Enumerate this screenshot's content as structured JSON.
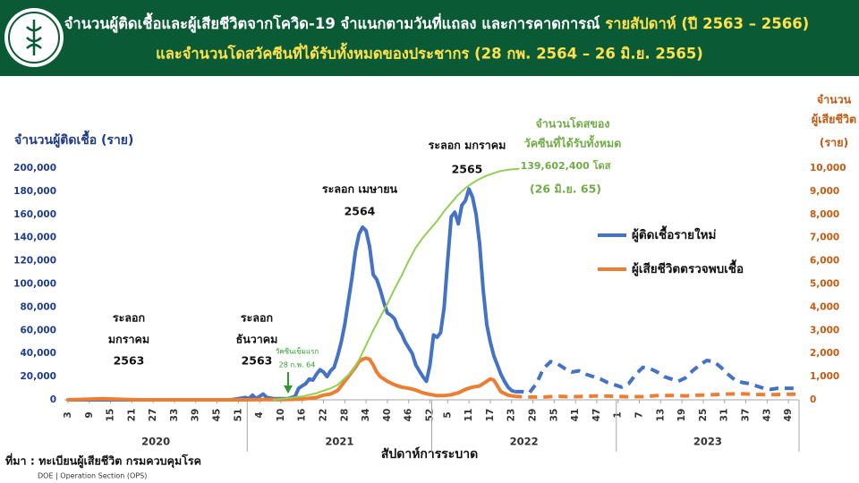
{
  "chart_data": {
    "type": "line",
    "title": [
      "จำนวนผู้ติดเชื้อและผู้เสียชีวิตจากโควิด-19 จำแนกตามวันที่แถลง และการคาดการณ์",
      "รายสัปดาห์ (ปี 2563 – 2566)"
    ],
    "subtitle": "และจำนวนโดสวัคซีนที่ได้รับทั้งหมดของประชากร (28 กพ. 2564 – 26 มิ.ย. 2565)",
    "ylabel": "จำนวนผู้ติดเชื้อ (ราย)",
    "y2label": [
      "จำนวน",
      "ผู้เสียชีวิต",
      "(ราย)"
    ],
    "xlabel": "สัปดาห์การระบาด",
    "source": "ที่มา : ทะเบียนผู้เสียชีวิต กรมควบคุมโรค",
    "credit": "DOE | Operation Section (OPS)",
    "legend": "right",
    "xlim": [
      -1,
      206
    ],
    "xticks": [
      {
        "value": 0,
        "label": "3"
      },
      {
        "value": 6,
        "label": "9"
      },
      {
        "value": 12,
        "label": "15"
      },
      {
        "value": 18,
        "label": "21"
      },
      {
        "value": 24,
        "label": "27"
      },
      {
        "value": 30,
        "label": "33"
      },
      {
        "value": 36,
        "label": "39"
      },
      {
        "value": 42,
        "label": "45"
      },
      {
        "value": 48,
        "label": "51"
      },
      {
        "value": 54,
        "label": "4"
      },
      {
        "value": 60,
        "label": "10"
      },
      {
        "value": 66,
        "label": "16"
      },
      {
        "value": 72,
        "label": "22"
      },
      {
        "value": 78,
        "label": "28"
      },
      {
        "value": 84,
        "label": "34"
      },
      {
        "value": 90,
        "label": "40"
      },
      {
        "value": 96,
        "label": "46"
      },
      {
        "value": 102,
        "label": "52"
      },
      {
        "value": 107,
        "label": "5"
      },
      {
        "value": 113,
        "label": "11"
      },
      {
        "value": 119,
        "label": "17"
      },
      {
        "value": 125,
        "label": "23"
      },
      {
        "value": 131,
        "label": "29"
      },
      {
        "value": 137,
        "label": "35"
      },
      {
        "value": 143,
        "label": "41"
      },
      {
        "value": 149,
        "label": "47"
      },
      {
        "value": 155,
        "label": "1"
      },
      {
        "value": 161,
        "label": "7"
      },
      {
        "value": 167,
        "label": "13"
      },
      {
        "value": 173,
        "label": "19"
      },
      {
        "value": 179,
        "label": "25"
      },
      {
        "value": 185,
        "label": "31"
      },
      {
        "value": 191,
        "label": "37"
      },
      {
        "value": 197,
        "label": "43"
      },
      {
        "value": 203,
        "label": "49"
      }
    ],
    "year_groups": [
      {
        "label": "2020",
        "from": -1,
        "to": 50.5
      },
      {
        "label": "2021",
        "from": 50.5,
        "to": 102.5
      },
      {
        "label": "2022",
        "from": 102.5,
        "to": 154.5
      },
      {
        "label": "2023",
        "from": 154.5,
        "to": 206
      }
    ],
    "ylim": [
      0,
      200000
    ],
    "yticks": [
      0,
      {
        "value": 20000,
        "label": "20,000"
      },
      {
        "value": 40000,
        "label": "40,000"
      },
      {
        "value": 60000,
        "label": "60,000"
      },
      {
        "value": 80000,
        "label": "80,000"
      },
      {
        "value": 100000,
        "label": "100,000"
      },
      {
        "value": 120000,
        "label": "120,000"
      },
      {
        "value": 140000,
        "label": "140,000"
      },
      {
        "value": 160000,
        "label": "160,000"
      },
      {
        "value": 180000,
        "label": "180,000"
      },
      {
        "value": 200000,
        "label": "200,000"
      }
    ],
    "y2lim": [
      0,
      10000
    ],
    "y2ticks": [
      0,
      {
        "value": 1000,
        "label": "1,000"
      },
      {
        "value": 2000,
        "label": "2,000"
      },
      {
        "value": 3000,
        "label": "3,000"
      },
      {
        "value": 4000,
        "label": "4,000"
      },
      {
        "value": 5000,
        "label": "5,000"
      },
      {
        "value": 6000,
        "label": "6,000"
      },
      {
        "value": 7000,
        "label": "7,000"
      },
      {
        "value": 8000,
        "label": "8,000"
      },
      {
        "value": 9000,
        "label": "9,000"
      },
      {
        "value": 10000,
        "label": "10,000"
      }
    ],
    "y3lim": [
      0,
      140000000
    ],
    "series": [
      {
        "name": "ผู้ติดเชื้อรายใหม่",
        "color": "#4472c4",
        "axis": "y",
        "dashed_from": 126,
        "x": [
          0,
          40,
          46,
          48,
          50,
          51,
          52,
          53,
          55,
          56,
          58,
          62,
          64,
          65,
          66,
          67,
          68,
          69,
          70,
          71,
          72,
          73,
          74,
          75,
          76,
          77,
          78,
          79,
          80,
          81,
          82,
          83,
          84,
          85,
          86,
          87,
          88,
          89,
          90,
          91,
          92,
          93,
          94,
          95,
          96,
          97,
          98,
          99,
          100,
          101,
          102,
          103,
          104,
          105,
          106,
          107,
          108,
          109,
          110,
          111,
          112,
          113,
          114,
          115,
          116,
          117,
          118,
          119,
          120,
          121,
          122,
          123,
          124,
          125,
          126,
          128,
          130,
          132,
          134,
          136,
          138,
          140,
          142,
          144,
          146,
          148,
          150,
          152,
          154,
          156,
          158,
          160,
          162,
          164,
          166,
          168,
          170,
          172,
          174,
          176,
          178,
          180,
          182,
          184,
          186,
          188,
          190,
          192,
          194,
          196,
          198,
          200,
          202,
          204,
          206
        ],
        "values": [
          0,
          0,
          0,
          1000,
          2000,
          1000,
          4000,
          1000,
          5000,
          2000,
          1000,
          1000,
          3000,
          10000,
          12000,
          14000,
          18000,
          17000,
          22000,
          26000,
          24000,
          20000,
          25000,
          28000,
          38000,
          50000,
          65000,
          85000,
          105000,
          128000,
          143000,
          149000,
          146000,
          132000,
          108000,
          104000,
          95000,
          84000,
          75000,
          73000,
          70000,
          62000,
          57000,
          50000,
          45000,
          40000,
          30000,
          25000,
          20000,
          16000,
          30000,
          56000,
          54000,
          58000,
          80000,
          120000,
          158000,
          162000,
          152000,
          168000,
          172000,
          182000,
          175000,
          160000,
          135000,
          95000,
          65000,
          50000,
          38000,
          30000,
          22000,
          16000,
          11000,
          8000,
          7000,
          7000,
          6000,
          14000,
          27000,
          33000,
          31000,
          27000,
          24000,
          25000,
          22000,
          20000,
          18000,
          15000,
          13000,
          11000,
          14000,
          22000,
          28000,
          27000,
          24000,
          20000,
          18000,
          16000,
          19000,
          25000,
          30000,
          34000,
          33000,
          28000,
          22000,
          17000,
          15000,
          14000,
          12000,
          10000,
          9000,
          10000,
          10000,
          10000,
          9000
        ]
      },
      {
        "name": "ผู้เสียชีวิตตรวจพบเชื้อ",
        "color": "#ed7d31",
        "axis": "y2",
        "dashed_from": 126,
        "x": [
          0,
          10,
          13,
          20,
          50,
          55,
          60,
          66,
          70,
          72,
          74,
          76,
          78,
          79,
          80,
          81,
          82,
          83,
          84,
          85,
          86,
          87,
          88,
          90,
          92,
          94,
          96,
          98,
          100,
          102,
          104,
          106,
          108,
          110,
          112,
          114,
          116,
          118,
          119,
          120,
          121,
          122,
          124,
          126,
          130,
          134,
          138,
          142,
          146,
          150,
          154,
          158,
          162,
          166,
          170,
          174,
          178,
          182,
          186,
          190,
          194,
          198,
          202,
          206
        ],
        "values": [
          0,
          50,
          30,
          0,
          0,
          10,
          10,
          30,
          100,
          200,
          250,
          400,
          800,
          1000,
          1200,
          1400,
          1650,
          1750,
          1800,
          1750,
          1500,
          1200,
          1000,
          800,
          650,
          550,
          500,
          420,
          300,
          230,
          180,
          180,
          220,
          300,
          450,
          550,
          600,
          800,
          900,
          850,
          600,
          350,
          200,
          150,
          120,
          120,
          150,
          130,
          150,
          170,
          150,
          130,
          140,
          180,
          190,
          170,
          200,
          220,
          250,
          260,
          230,
          220,
          240,
          250
        ]
      },
      {
        "name": "จำนวนโดสของวัคซีนที่ได้รับทั้งหมด",
        "color": "#92d050",
        "axis": "y3",
        "x": [
          58,
          62,
          66,
          70,
          74,
          76,
          78,
          80,
          82,
          84,
          86,
          88,
          90,
          92,
          94,
          96,
          98,
          100,
          102,
          104,
          106,
          108,
          110,
          112,
          114,
          116,
          118,
          120,
          122,
          124,
          127
        ],
        "values": [
          0,
          1000000,
          2000000,
          4000000,
          7000000,
          9000000,
          13000000,
          17000000,
          24000000,
          33000000,
          42000000,
          50000000,
          58000000,
          67000000,
          75000000,
          84000000,
          92000000,
          98000000,
          103000000,
          108000000,
          114000000,
          119000000,
          124000000,
          128000000,
          131000000,
          133500000,
          135500000,
          137000000,
          138300000,
          139000000,
          139602400
        ],
        "value_labels": {
          "30": "139,602,400 โดส"
        }
      }
    ],
    "annotations": [
      [
        "ระลอก",
        "มกราคม",
        "2563"
      ],
      [
        "ระลอก",
        "ธันวาคม",
        "2563"
      ],
      [
        "ระลอก เมษายน",
        "2564"
      ],
      [
        "ระลอก มกราคม",
        "2565"
      ],
      [
        "จำนวนโดสของ",
        "วัคซีนที่ได้รับทั้งหมด",
        "(26 มิ.ย. 65)"
      ],
      [
        "วัคซีนเข็มแรก",
        "28 ก.พ. 64"
      ]
    ]
  }
}
